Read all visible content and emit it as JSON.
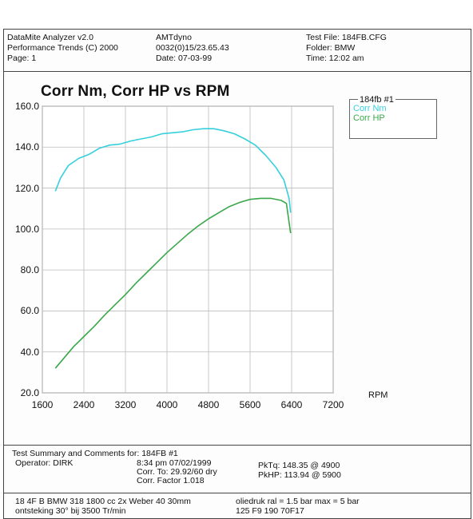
{
  "header": {
    "app": "DataMite Analyzer v2.0",
    "vendor": "Performance Trends (C) 2000",
    "page": "Page:  1",
    "dyno": "AMTdyno",
    "run_id": "0032(0)15/23.65.43",
    "date": "Date: 07-03-99",
    "test_file": "Test File: 184FB.CFG",
    "folder": "Folder: BMW",
    "time": "Time: 12:02 am"
  },
  "legend": {
    "title": "184fb   #1",
    "items": [
      "Corr Nm",
      "Corr HP"
    ]
  },
  "chart_data": {
    "type": "line",
    "title": "Corr Nm, Corr HP vs RPM",
    "xlabel": "RPM",
    "ylabel": "",
    "xlim": [
      1600,
      7200
    ],
    "ylim": [
      20,
      160
    ],
    "xticks": [
      "1600",
      "2400",
      "3200",
      "4000",
      "4800",
      "5600",
      "6400",
      "7200"
    ],
    "yticks": [
      "160.0",
      "140.0",
      "120.0",
      "100.0",
      "80.0",
      "60.0",
      "40.0",
      "20.0"
    ],
    "grid": true,
    "legend_position": "top-right",
    "series": [
      {
        "name": "Corr Nm",
        "color": "#35d0dc",
        "x": [
          1850,
          1950,
          2100,
          2300,
          2500,
          2700,
          2900,
          3100,
          3300,
          3500,
          3700,
          3900,
          4100,
          4300,
          4500,
          4700,
          4900,
          5100,
          5300,
          5500,
          5700,
          5900,
          6100,
          6250,
          6350,
          6380
        ],
        "y": [
          118.5,
          125,
          131,
          134.5,
          136.5,
          139.5,
          141,
          141.5,
          143,
          144,
          145,
          146.5,
          147,
          147.5,
          148.5,
          149,
          149,
          148,
          146.5,
          144,
          141,
          136,
          130,
          124,
          115,
          108
        ]
      },
      {
        "name": "Corr HP",
        "color": "#3aa84a",
        "x": [
          1850,
          2000,
          2200,
          2400,
          2600,
          2800,
          3000,
          3200,
          3400,
          3600,
          3800,
          4000,
          4200,
          4400,
          4600,
          4800,
          5000,
          5200,
          5400,
          5600,
          5800,
          6000,
          6200,
          6300,
          6380
        ],
        "y": [
          32,
          36.5,
          42.5,
          47.5,
          52.5,
          58,
          63,
          68,
          73.5,
          78.5,
          83.5,
          88.5,
          93,
          97.5,
          101.5,
          105,
          108,
          111,
          113,
          114.5,
          115,
          115,
          114,
          112.5,
          98
        ]
      }
    ]
  },
  "summary": {
    "heading": "Test Summary and Comments for:   184FB  #1",
    "operator": "Operator: DIRK",
    "datetime": "8:34 pm 07/02/1999",
    "corr_to": "Corr. To: 29.92/60 dry",
    "corr_factor": "Corr. Factor 1.018",
    "pk_tq": "PkTq: 148.35 @  4900",
    "pk_hp": "PkHP: 113.94 @  5900"
  },
  "notes": {
    "line1a": "18 4F B   BMW 318  1800 cc 2x Weber 40  30mm",
    "line1b": "ontsteking 30° bij 3500 Tr/min",
    "line2a": "oliedruk ral = 1.5 bar  max = 5 bar",
    "line2b": "125 F9 190  70F17"
  }
}
